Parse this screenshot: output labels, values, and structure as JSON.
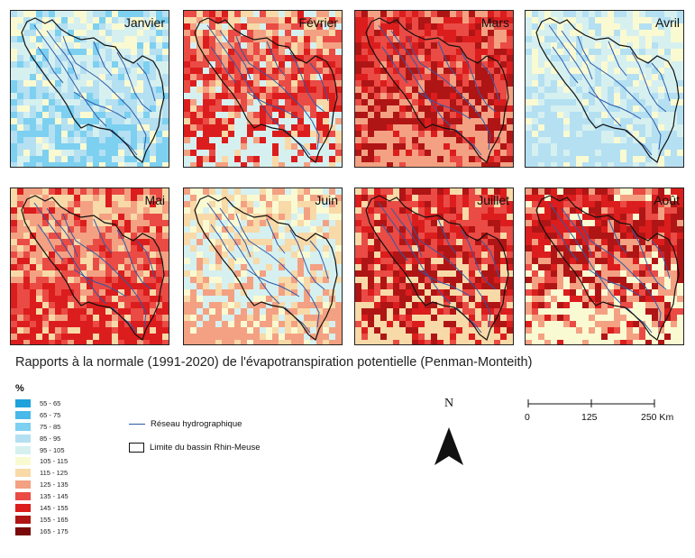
{
  "months": [
    "Janvier",
    "Février",
    "Mars",
    "Avril",
    "Mai",
    "Juin",
    "Juillet",
    "Août"
  ],
  "caption": "Rapports à la normale (1991-2020) de l'évapotranspiration potentielle (Penman-Monteith)",
  "legend": {
    "title": "%",
    "classes": [
      {
        "label": "55 - 65",
        "color": "#1fa2dc"
      },
      {
        "label": "65 - 75",
        "color": "#48b9e9"
      },
      {
        "label": "75 - 85",
        "color": "#7dd0f0"
      },
      {
        "label": "85 - 95",
        "color": "#b4e0f2"
      },
      {
        "label": "95 - 105",
        "color": "#d6f0f0"
      },
      {
        "label": "105 - 115",
        "color": "#fafad2"
      },
      {
        "label": "115 - 125",
        "color": "#f8d9a8"
      },
      {
        "label": "125 - 135",
        "color": "#f3a182"
      },
      {
        "label": "135 - 145",
        "color": "#ea4b44"
      },
      {
        "label": "145 - 155",
        "color": "#dc1d1d"
      },
      {
        "label": "155 - 165",
        "color": "#b01515"
      },
      {
        "label": "165 - 175",
        "color": "#7a0a0a"
      }
    ]
  },
  "map_legend": {
    "river_label": "Réseau hydrographique",
    "basin_label": "Limite du bassin Rhin-Meuse"
  },
  "north_label": "N",
  "scale": {
    "labels": [
      "0",
      "125",
      "250 Km"
    ]
  },
  "month_classes": {
    "Janvier": [
      5,
      4,
      3,
      2
    ],
    "Février": [
      6,
      7,
      8,
      9,
      4
    ],
    "Mars": [
      9,
      8,
      10,
      7
    ],
    "Avril": [
      5,
      4,
      3
    ],
    "Mai": [
      6,
      7,
      8,
      9
    ],
    "Juin": [
      5,
      6,
      4,
      7
    ],
    "Juillet": [
      9,
      8,
      10,
      6
    ],
    "Août": [
      8,
      9,
      10,
      7,
      5
    ]
  }
}
